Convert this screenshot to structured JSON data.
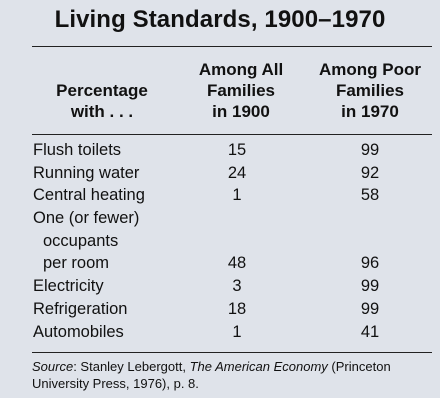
{
  "title": "Living Standards, 1900–1970",
  "columns": {
    "label": [
      "Percentage",
      "with . . ."
    ],
    "all_1900": [
      "Among All",
      "Families",
      "in 1900"
    ],
    "poor_1970": [
      "Among Poor",
      "Families",
      "in 1970"
    ]
  },
  "rows": [
    {
      "label": "Flush toilets",
      "all_1900": "15",
      "poor_1970": "99"
    },
    {
      "label": "Running water",
      "all_1900": "24",
      "poor_1970": "92"
    },
    {
      "label": "Central heating",
      "all_1900": "1",
      "poor_1970": "58"
    },
    {
      "label_lines": [
        "One (or fewer)",
        "occupants",
        "per room"
      ],
      "all_1900": "48",
      "poor_1970": "96"
    },
    {
      "label": "Electricity",
      "all_1900": "3",
      "poor_1970": "99"
    },
    {
      "label": "Refrigeration",
      "all_1900": "18",
      "poor_1970": "99"
    },
    {
      "label": "Automobiles",
      "all_1900": "1",
      "poor_1970": "41"
    }
  ],
  "source": {
    "prefix": "Source",
    "text_before_italic": ": Stanley Lebergott, ",
    "book": "The American Economy",
    "text_after_italic": " (Princeton University Press, 1976), p. 8."
  }
}
